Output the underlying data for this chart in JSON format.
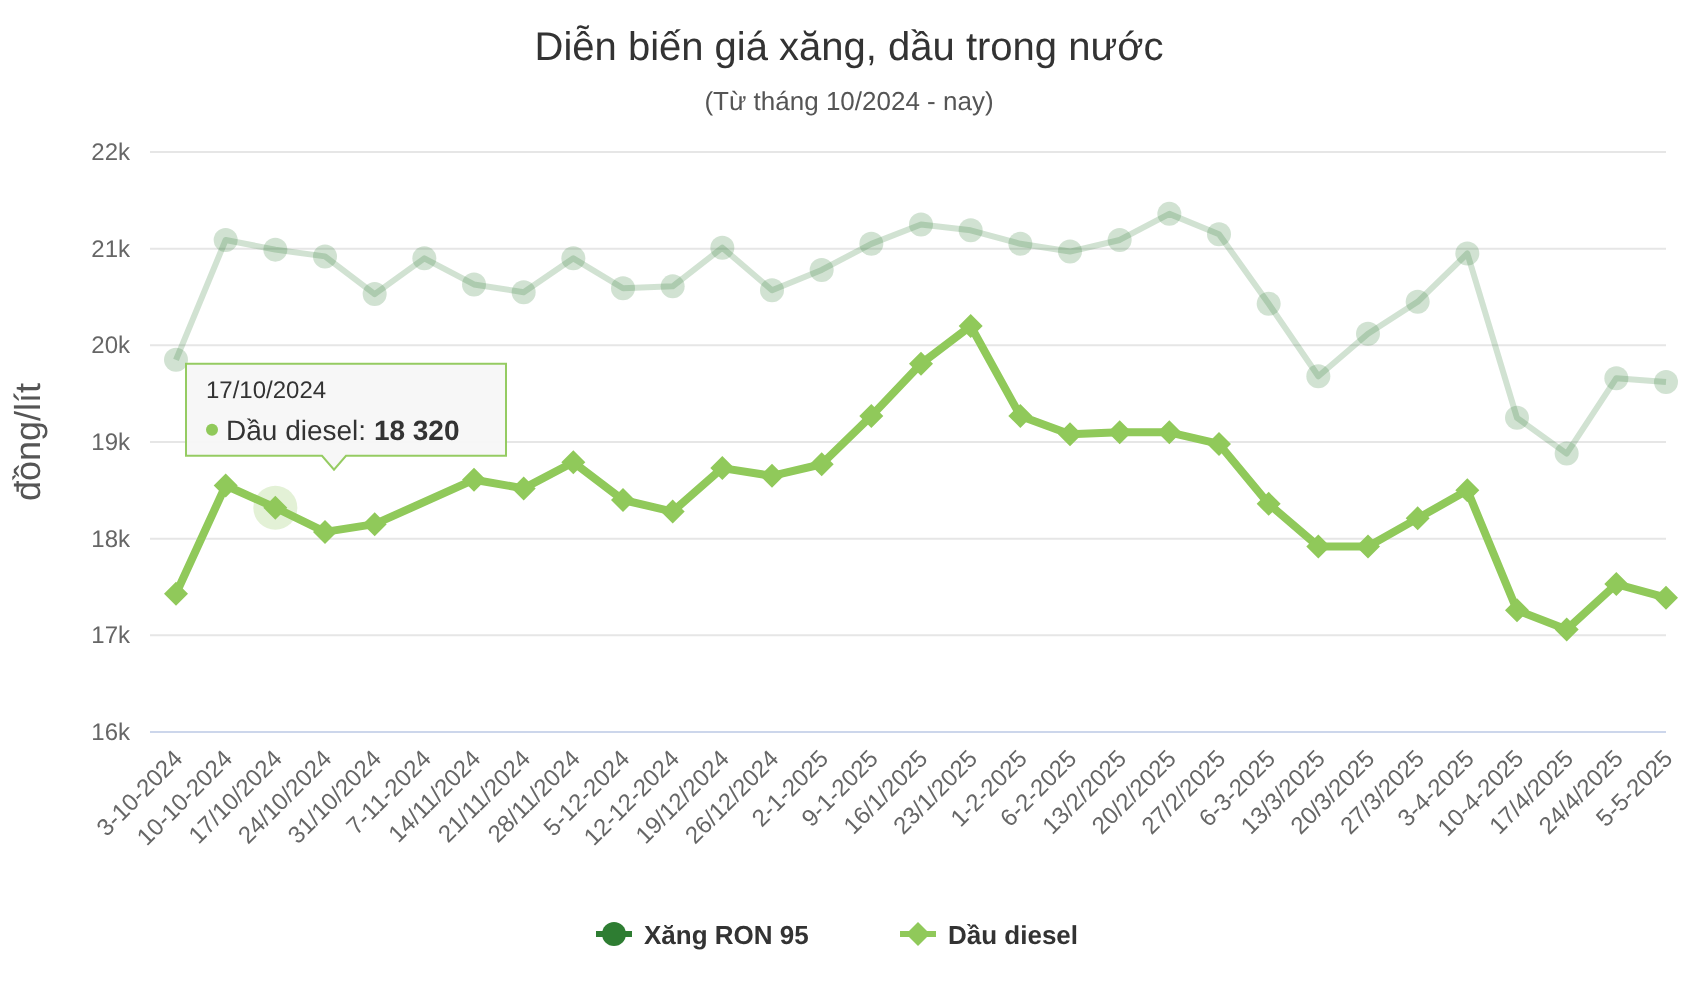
{
  "chart_data": {
    "type": "line",
    "title": "Diễn biến giá xăng, dầu trong nước",
    "subtitle": "(Từ tháng 10/2024 - nay)",
    "ylabel": "đồng/lít",
    "categories": [
      "3-10-2024",
      "10-10-2024",
      "17/10/2024",
      "24/10/2024",
      "31/10/2024",
      "7-11-2024",
      "14/11/2024",
      "21/11/2024",
      "28/11/2024",
      "5-12-2024",
      "12-12-2024",
      "19/12/2024",
      "26/12/2024",
      "2-1-2025",
      "9-1-2025",
      "16/1/2025",
      "23/1/2025",
      "1-2-2025",
      "6-2-2025",
      "13/2/2025",
      "20/2/2025",
      "27/2/2025",
      "6-3-2025",
      "13/3/2025",
      "20/3/2025",
      "27/3/2025",
      "3-4-2025",
      "10-4-2025",
      "17/4/2025",
      "24/4/2025",
      "5-5-2025"
    ],
    "series": [
      {
        "name": "Xăng RON 95",
        "color": "#2e7d32",
        "marker": "circle",
        "values": [
          19850,
          21090,
          20990,
          20920,
          20530,
          20900,
          20630,
          20550,
          20900,
          20590,
          20610,
          21010,
          20570,
          20780,
          21050,
          21250,
          21190,
          21050,
          20970,
          21090,
          21360,
          21150,
          20430,
          19680,
          20120,
          20450,
          20950,
          19250,
          18880,
          19660,
          19620
        ]
      },
      {
        "name": "Dầu diesel",
        "color": "#90c95a",
        "marker": "diamond",
        "values": [
          17430,
          18550,
          18320,
          18070,
          18150,
          null,
          18610,
          18520,
          18790,
          18400,
          18280,
          18730,
          18650,
          18770,
          19270,
          19810,
          20200,
          19270,
          19080,
          19100,
          19100,
          18980,
          18360,
          17920,
          17920,
          18210,
          18500,
          17260,
          17060,
          17530,
          17390
        ]
      }
    ],
    "ylim": [
      16000,
      22000
    ],
    "yticks": [
      {
        "value": 16000,
        "label": "16k"
      },
      {
        "value": 17000,
        "label": "17k"
      },
      {
        "value": 18000,
        "label": "18k"
      },
      {
        "value": 19000,
        "label": "19k"
      },
      {
        "value": 20000,
        "label": "20k"
      },
      {
        "value": 21000,
        "label": "21k"
      },
      {
        "value": 22000,
        "label": "22k"
      }
    ],
    "grid": "y",
    "legend": "bottom",
    "line_style": "solid",
    "annotations": [
      "17/10/2024",
      "Dầu diesel: 18 320"
    ]
  }
}
